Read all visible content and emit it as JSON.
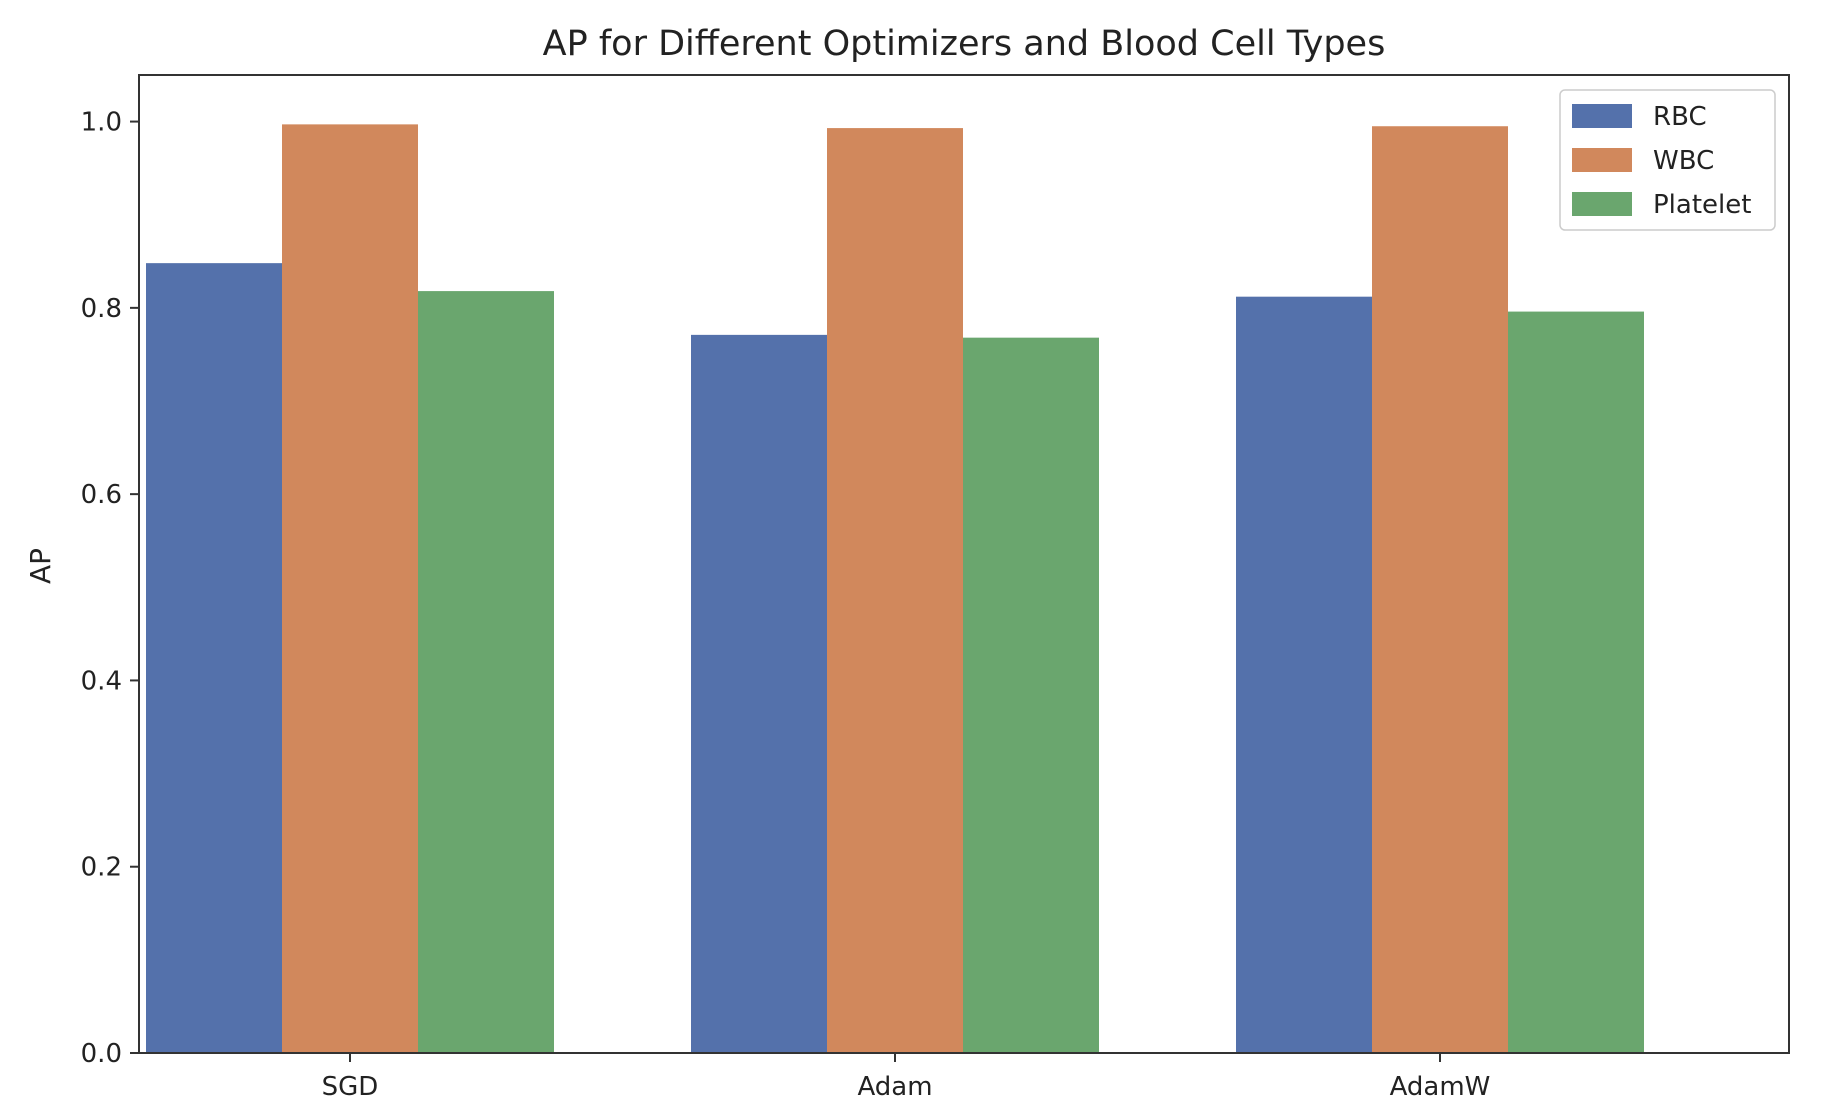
{
  "chart_data": {
    "type": "bar",
    "title": "AP for Different Optimizers and Blood Cell Types",
    "xlabel": "",
    "ylabel": "AP",
    "categories": [
      "SGD",
      "Adam",
      "AdamW"
    ],
    "series": [
      {
        "name": "RBC",
        "values": [
          0.848,
          0.771,
          0.812
        ],
        "color": "#5471ab"
      },
      {
        "name": "WBC",
        "values": [
          0.997,
          0.993,
          0.995
        ],
        "color": "#d1885c"
      },
      {
        "name": "Platelet",
        "values": [
          0.818,
          0.768,
          0.796
        ],
        "color": "#6aa66e"
      }
    ],
    "ylim": [
      0,
      1.05
    ],
    "yticks": [
      "0.0",
      "0.2",
      "0.4",
      "0.6",
      "0.8",
      "1.0"
    ],
    "grid": false,
    "legend_position": "top-right"
  }
}
